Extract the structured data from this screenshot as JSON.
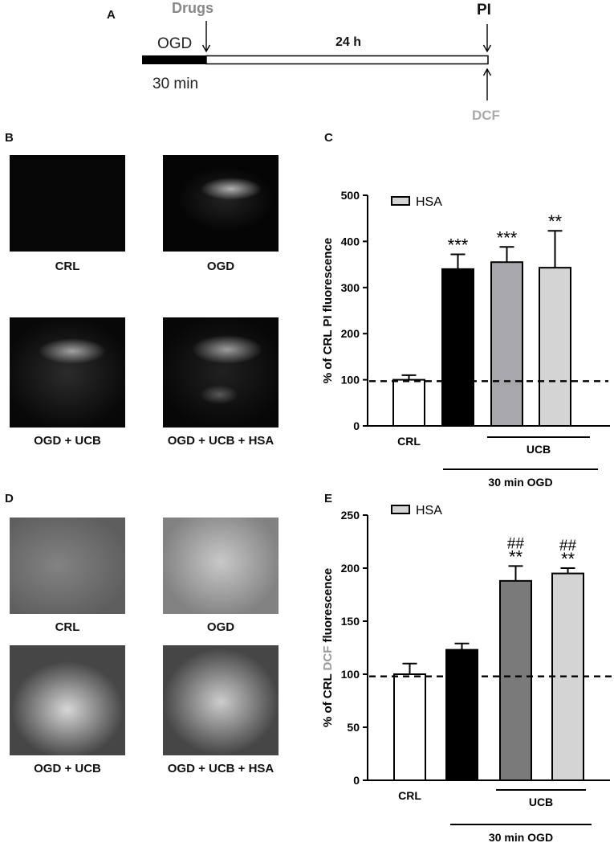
{
  "panel_a": {
    "label": "A",
    "drugs": "Drugs",
    "ogd": "OGD",
    "duration": "24 h",
    "pi": "PI",
    "time_30": "30 min",
    "dcf": "DCF"
  },
  "panel_b": {
    "label": "B",
    "captions": [
      "CRL",
      "OGD",
      "OGD + UCB",
      "OGD + UCB + HSA"
    ]
  },
  "panel_d": {
    "label": "D",
    "captions": [
      "CRL",
      "OGD",
      "OGD + UCB",
      "OGD + UCB + HSA"
    ]
  },
  "colors": {
    "crl": "#ffffff",
    "ogd": "#000000",
    "ucb_c": "#a8a8ac",
    "ucb_e": "#7a7a7a",
    "hsa": "#d4d4d4"
  },
  "chart_data": [
    {
      "panel": "C",
      "type": "bar",
      "ylabel_pre": "% of CRL ",
      "ylabel_mid": "PI",
      "ylabel_post": " fluorescence",
      "ylim": [
        0,
        500
      ],
      "yticks": [
        "0",
        "100",
        "200",
        "300",
        "400",
        "500"
      ],
      "values": [
        100,
        340,
        355,
        343
      ],
      "errors": [
        10,
        32,
        33,
        80
      ],
      "significance": [
        "",
        "***",
        "***",
        "**"
      ],
      "significance2": [
        "",
        "",
        "",
        ""
      ],
      "reference_line": 97,
      "legend": "HSA",
      "group_labels": {
        "crl": "CRL",
        "ucb": "UCB",
        "ogd": "30 min OGD"
      }
    },
    {
      "panel": "E",
      "type": "bar",
      "ylabel_pre": "% of CRL ",
      "ylabel_mid": "DCF",
      "ylabel_post": " fluorescence",
      "ylim": [
        0,
        250
      ],
      "yticks": [
        "0",
        "50",
        "100",
        "150",
        "200",
        "250"
      ],
      "values": [
        100,
        123,
        188,
        195
      ],
      "errors": [
        10,
        6,
        14,
        5
      ],
      "significance": [
        "",
        "",
        "**",
        "**"
      ],
      "significance2": [
        "",
        "",
        "##",
        "##"
      ],
      "reference_line": 98,
      "legend": "HSA",
      "group_labels": {
        "crl": "CRL",
        "ucb": "UCB",
        "ogd": "30 min OGD"
      }
    }
  ]
}
